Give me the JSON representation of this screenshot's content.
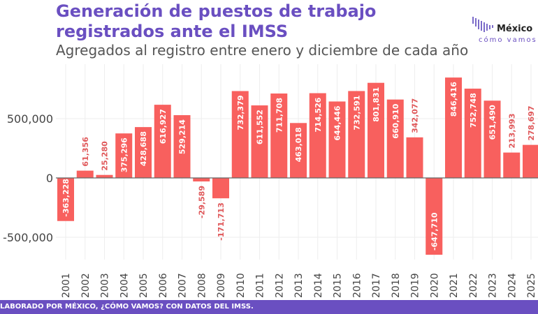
{
  "header": {
    "title_line1": "Generación de puestos de trabajo",
    "title_line2": "registrados ante el IMSS",
    "subtitle": "Agregados al registro entre enero y diciembre de cada año"
  },
  "logo": {
    "text1": "México",
    "text2": "cómo vamos"
  },
  "footer": {
    "text": "LABORADO POR MÉXICO, ¿CÓMO VAMOS? CON DATOS DEL IMSS."
  },
  "chart_data": {
    "type": "bar",
    "categories": [
      "2001",
      "2002",
      "2003",
      "2004",
      "2005",
      "2006",
      "2007",
      "2008",
      "2009",
      "2010",
      "2011",
      "2012",
      "2013",
      "2014",
      "2015",
      "2016",
      "2017",
      "2018",
      "2019",
      "2020",
      "2021",
      "2022",
      "2023",
      "2024",
      "2025"
    ],
    "values": [
      -363228,
      61356,
      25280,
      375296,
      428688,
      616927,
      529214,
      -29589,
      -171713,
      732379,
      611552,
      711708,
      463018,
      714526,
      644446,
      732591,
      801831,
      660910,
      342077,
      -647710,
      846416,
      752748,
      651490,
      213993,
      278697
    ],
    "labels": [
      "-363,228",
      "61,356",
      "25,280",
      "375,296",
      "428,688",
      "616,927",
      "529,214",
      "-29,589",
      "-171,713",
      "732,379",
      "611,552",
      "711,708",
      "463,018",
      "714,526",
      "644,446",
      "732,591",
      "801,831",
      "660,910",
      "342,077",
      "-647,710",
      "846,416",
      "752,748",
      "651,490",
      "213,993",
      "278,697"
    ],
    "yticks": [
      {
        "value": 500000,
        "label": "500,000"
      },
      {
        "value": 0,
        "label": "0"
      },
      {
        "value": -500000,
        "label": "-500,000"
      }
    ],
    "grid": true,
    "bar_color": "#f8605e"
  }
}
